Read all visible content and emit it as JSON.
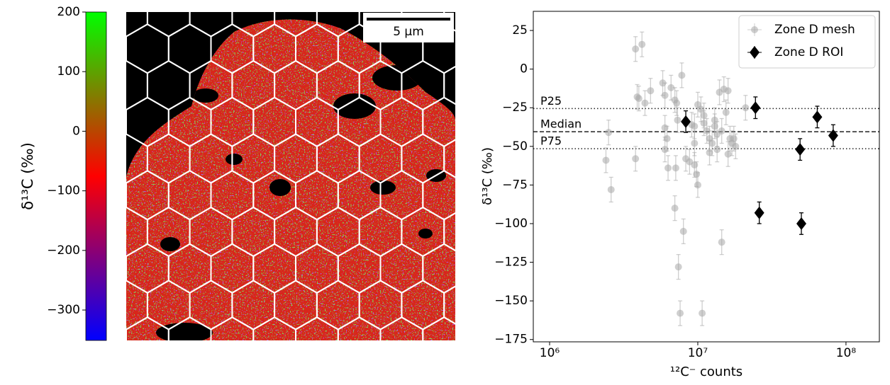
{
  "chart_data": [
    {
      "type": "colorbar",
      "ylabel": "δ¹³C (‰)",
      "colors": [
        "#0000ff",
        "#ff0000",
        "#00ff00"
      ],
      "ylim": [
        -351,
        200
      ],
      "yticks": [
        200,
        100,
        0,
        {
          "value": -100,
          "label": "−100"
        },
        {
          "value": -200,
          "label": "−200"
        },
        {
          "value": -300,
          "label": "−300"
        }
      ]
    },
    {
      "type": "image",
      "scalebar_label": "5 μm"
    },
    {
      "type": "scatter",
      "xscale": "log",
      "xlabel": "¹²C⁻ counts",
      "ylabel": "δ¹³C (‰)",
      "xlim": [
        776000,
        168000000
      ],
      "xticks": [
        {
          "value": 1000000,
          "label": "10⁶"
        },
        {
          "value": 10000000,
          "label": "10⁷"
        },
        {
          "value": 100000000,
          "label": "10⁸"
        }
      ],
      "ylim": [
        -176.5,
        37.4
      ],
      "yticks": [
        25,
        0,
        {
          "value": -25,
          "label": "−25"
        },
        {
          "value": -50,
          "label": "−50"
        },
        {
          "value": -75,
          "label": "−75"
        },
        {
          "value": -100,
          "label": "−100"
        },
        {
          "value": -125,
          "label": "−125"
        },
        {
          "value": -150,
          "label": "−150"
        },
        {
          "value": -175,
          "label": "−175"
        }
      ],
      "hlines": [
        {
          "value": -25.5,
          "label": "P25",
          "style": "dotted"
        },
        {
          "value": -40.5,
          "label": "Median",
          "style": "dashed"
        },
        {
          "value": -51.5,
          "label": "P75",
          "style": "dotted"
        }
      ],
      "legend": "upper right",
      "series": [
        {
          "name": "Zone D mesh",
          "color": "#a8a8a8",
          "marker": "circle",
          "yerr": 8,
          "x": [
            3800000,
            4200000,
            3900000,
            4000000,
            4400000,
            4800000,
            3800000,
            2400000,
            2500000,
            2600000,
            5800000,
            6000000,
            6600000,
            7800000,
            7000000,
            7200000,
            6000000,
            6200000,
            6000000,
            6300000,
            7100000,
            7300000,
            7000000,
            8000000,
            7400000,
            7600000,
            10700000,
            8300000,
            8800000,
            9500000,
            9800000,
            10000000,
            9100000,
            9500000,
            10000000,
            10500000,
            11000000,
            11500000,
            12000000,
            12500000,
            13000000,
            13500000,
            14000000,
            14500000,
            15000000,
            16000000,
            15500000,
            16000000,
            16500000,
            17000000,
            18000000,
            17500000,
            21000000,
            13500000,
            12000000,
            11000000,
            9500000,
            13000000,
            14500000
          ],
          "values": [
            13,
            16,
            -18,
            -19,
            -22,
            -14,
            -58,
            -59,
            -41,
            -78,
            -9,
            -17,
            -12,
            -4,
            -20,
            -22,
            -38,
            -45,
            -52,
            -64,
            -64,
            -33,
            -90,
            -105,
            -128,
            -158,
            -158,
            -58,
            -60,
            -62,
            -68,
            -75,
            -36,
            -37,
            -23,
            -26,
            -30,
            -40,
            -45,
            -48,
            -37,
            -42,
            -15,
            -112,
            -13,
            -14,
            -28,
            -55,
            -45,
            -48,
            -50,
            -45,
            -25,
            -52,
            -54,
            -35,
            -48,
            -33,
            -40
          ]
        },
        {
          "name": "Zone D ROI",
          "color": "#000000",
          "marker": "diamond",
          "yerr": 7,
          "x": [
            8300000,
            24500000,
            26000000,
            49000000,
            50000000,
            64000000,
            82000000
          ],
          "values": [
            -34,
            -25,
            -93,
            -52,
            -100,
            -31,
            -43
          ]
        }
      ]
    }
  ]
}
